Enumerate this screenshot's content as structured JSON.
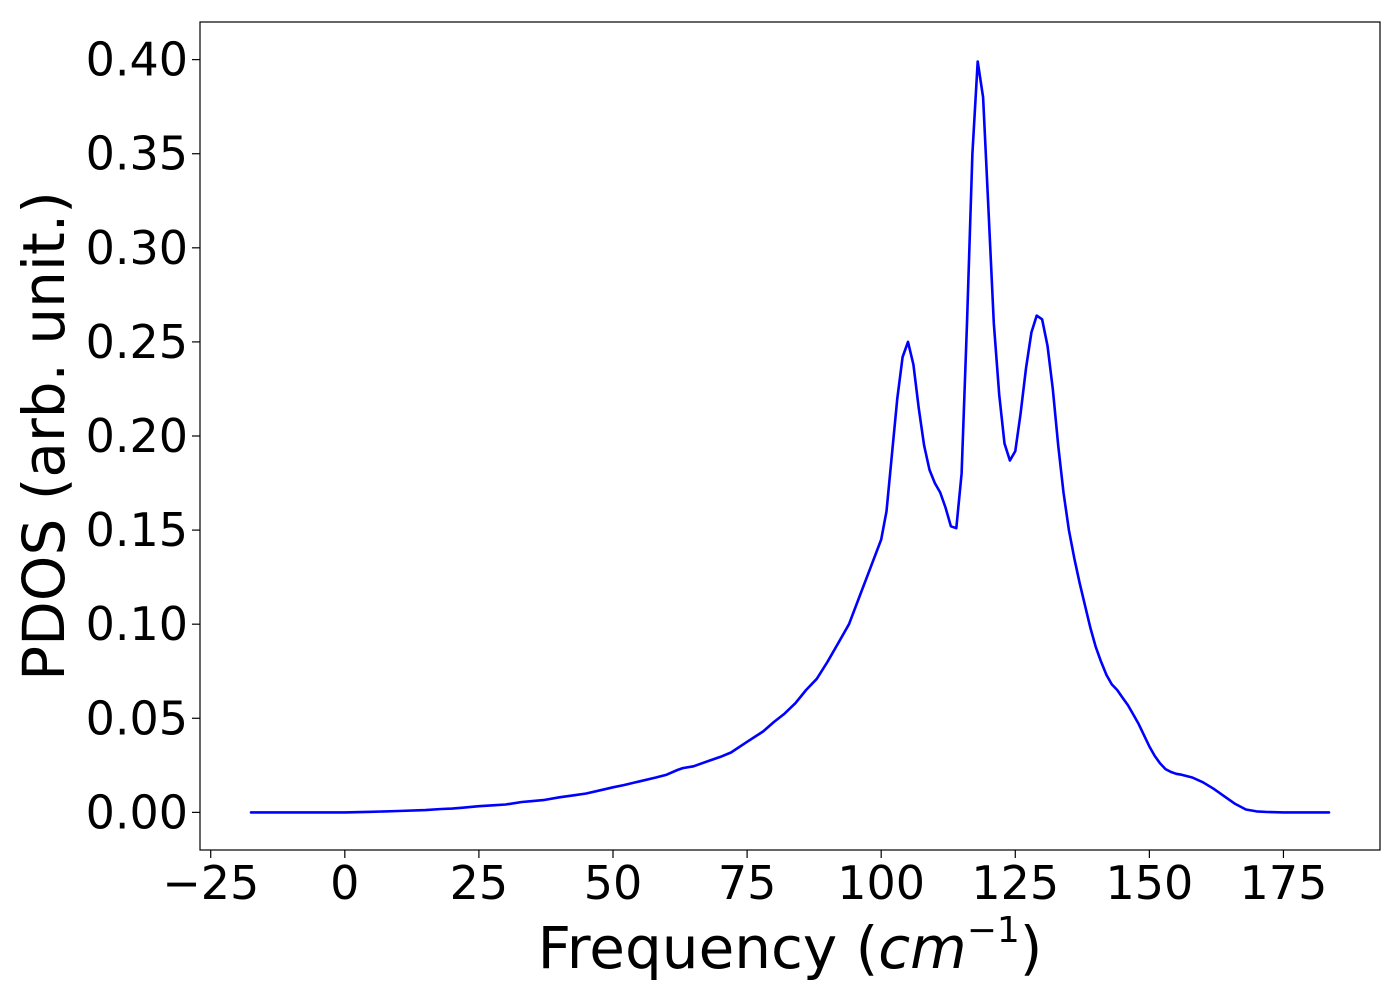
{
  "chart_data": {
    "type": "line",
    "title": "",
    "xlabel_prefix": "Frequency (",
    "xlabel_unit": "cm",
    "xlabel_exponent": "−1",
    "xlabel_suffix": ")",
    "ylabel": "PDOS (arb. unit.)",
    "xlim": [
      -27,
      193
    ],
    "ylim": [
      -0.02,
      0.42
    ],
    "xticks": [
      -25,
      0,
      25,
      50,
      75,
      100,
      125,
      150,
      175
    ],
    "xtick_labels": [
      "−25",
      "0",
      "25",
      "50",
      "75",
      "100",
      "125",
      "150",
      "175"
    ],
    "yticks": [
      0.0,
      0.05,
      0.1,
      0.15,
      0.2,
      0.25,
      0.3,
      0.35,
      0.4
    ],
    "ytick_labels": [
      "0.00",
      "0.05",
      "0.10",
      "0.15",
      "0.20",
      "0.25",
      "0.30",
      "0.35",
      "0.40"
    ],
    "grid": false,
    "legend": "none",
    "line_color": "#0000ff",
    "series": [
      {
        "x": [
          -17.5,
          0,
          5,
          10,
          15,
          18,
          20,
          22,
          25,
          28,
          30,
          33,
          35,
          37,
          40,
          43,
          45,
          48,
          50,
          52,
          55,
          58,
          60,
          62,
          63,
          65,
          68,
          70,
          72,
          75,
          78,
          80,
          82,
          84,
          86,
          88,
          90,
          92,
          94,
          96,
          98,
          100,
          101,
          102,
          103,
          104,
          105,
          106,
          107,
          108,
          109,
          110,
          111,
          112,
          113,
          114,
          115,
          116,
          117,
          118,
          119,
          120,
          121,
          122,
          123,
          124,
          125,
          126,
          127,
          128,
          129,
          130,
          131,
          132,
          133,
          134,
          135,
          136,
          137,
          138,
          139,
          140,
          141,
          142,
          143,
          144,
          145,
          146,
          147,
          148,
          149,
          150,
          151,
          152,
          153,
          154,
          155,
          156,
          158,
          160,
          162,
          164,
          166,
          168,
          170,
          172,
          175,
          180,
          183.5
        ],
        "values": [
          0.0,
          0.0,
          0.0003,
          0.0007,
          0.0012,
          0.0018,
          0.002,
          0.0025,
          0.0033,
          0.0038,
          0.0042,
          0.0055,
          0.006,
          0.0065,
          0.008,
          0.0092,
          0.01,
          0.012,
          0.0133,
          0.0145,
          0.0165,
          0.0185,
          0.02,
          0.0225,
          0.0235,
          0.0245,
          0.0275,
          0.0295,
          0.0318,
          0.0375,
          0.043,
          0.048,
          0.0525,
          0.058,
          0.065,
          0.071,
          0.08,
          0.09,
          0.1,
          0.115,
          0.13,
          0.145,
          0.16,
          0.19,
          0.22,
          0.242,
          0.25,
          0.238,
          0.215,
          0.195,
          0.182,
          0.175,
          0.17,
          0.162,
          0.152,
          0.151,
          0.18,
          0.26,
          0.35,
          0.399,
          0.38,
          0.32,
          0.26,
          0.222,
          0.196,
          0.187,
          0.192,
          0.212,
          0.236,
          0.255,
          0.264,
          0.262,
          0.248,
          0.225,
          0.195,
          0.17,
          0.15,
          0.135,
          0.122,
          0.11,
          0.098,
          0.088,
          0.08,
          0.073,
          0.068,
          0.065,
          0.061,
          0.057,
          0.052,
          0.047,
          0.041,
          0.035,
          0.03,
          0.026,
          0.023,
          0.0215,
          0.0205,
          0.02,
          0.0185,
          0.016,
          0.0125,
          0.0085,
          0.0045,
          0.0015,
          0.0005,
          0.0002,
          0.0,
          0.0,
          0.0
        ]
      }
    ]
  }
}
